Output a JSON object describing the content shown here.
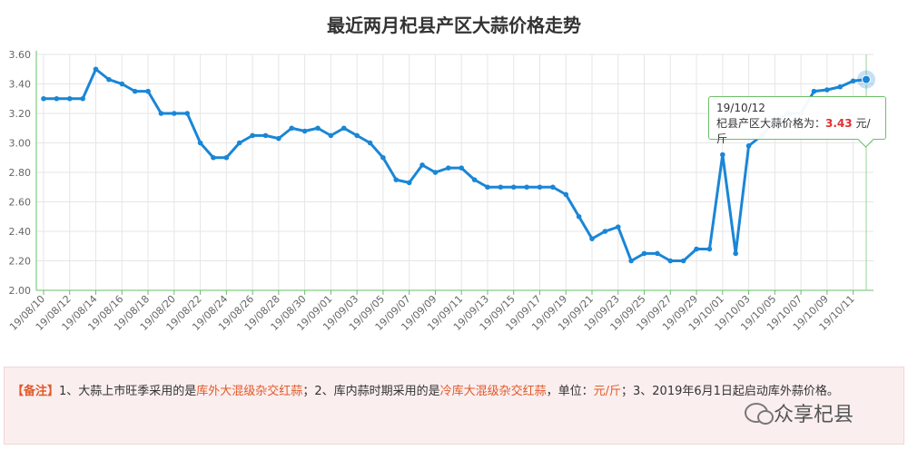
{
  "title": "最近两月杞县产区大蒜价格走势",
  "chart_data": {
    "type": "line",
    "x": [
      "19/08/10",
      "19/08/11",
      "19/08/12",
      "19/08/13",
      "19/08/14",
      "19/08/15",
      "19/08/16",
      "19/08/17",
      "19/08/18",
      "19/08/19",
      "19/08/20",
      "19/08/21",
      "19/08/22",
      "19/08/23",
      "19/08/24",
      "19/08/25",
      "19/08/26",
      "19/08/27",
      "19/08/28",
      "19/08/29",
      "19/08/30",
      "19/08/31",
      "19/09/01",
      "19/09/02",
      "19/09/03",
      "19/09/04",
      "19/09/05",
      "19/09/06",
      "19/09/07",
      "19/09/08",
      "19/09/09",
      "19/09/10",
      "19/09/11",
      "19/09/12",
      "19/09/13",
      "19/09/14",
      "19/09/15",
      "19/09/16",
      "19/09/17",
      "19/09/18",
      "19/09/19",
      "19/09/20",
      "19/09/21",
      "19/09/22",
      "19/09/23",
      "19/09/24",
      "19/09/25",
      "19/09/26",
      "19/09/27",
      "19/09/28",
      "19/09/29",
      "19/09/30",
      "19/10/01",
      "19/10/02",
      "19/10/03",
      "19/10/04",
      "19/10/05",
      "19/10/06",
      "19/10/07",
      "19/10/08",
      "19/10/09",
      "19/10/10",
      "19/10/11",
      "19/10/12"
    ],
    "xticks": [
      "19/08/10",
      "19/08/12",
      "19/08/14",
      "19/08/16",
      "19/08/18",
      "19/08/20",
      "19/08/22",
      "19/08/24",
      "19/08/26",
      "19/08/28",
      "19/08/30",
      "19/09/01",
      "19/09/03",
      "19/09/05",
      "19/09/07",
      "19/09/09",
      "19/09/11",
      "19/09/13",
      "19/09/15",
      "19/09/17",
      "19/09/19",
      "19/09/21",
      "19/09/23",
      "19/09/25",
      "19/09/27",
      "19/09/29",
      "19/10/01",
      "19/10/03",
      "19/10/05",
      "19/10/07",
      "19/10/09",
      "19/10/11"
    ],
    "values": [
      3.3,
      3.3,
      3.3,
      3.3,
      3.5,
      3.43,
      3.4,
      3.35,
      3.35,
      3.2,
      3.2,
      3.2,
      3.0,
      2.9,
      2.9,
      3.0,
      3.05,
      3.05,
      3.03,
      3.1,
      3.08,
      3.1,
      3.05,
      3.1,
      3.05,
      3.0,
      2.9,
      2.75,
      2.73,
      2.85,
      2.8,
      2.83,
      2.83,
      2.75,
      2.7,
      2.7,
      2.7,
      2.7,
      2.7,
      2.7,
      2.65,
      2.5,
      2.35,
      2.4,
      2.43,
      2.2,
      2.25,
      2.25,
      2.2,
      2.2,
      2.28,
      2.28,
      2.92,
      2.25,
      2.98,
      3.05,
      3.15,
      3.2,
      3.2,
      3.35,
      3.36,
      3.38,
      3.42,
      3.43
    ],
    "yticks": [
      "2.00",
      "2.20",
      "2.40",
      "2.60",
      "2.80",
      "3.00",
      "3.20",
      "3.40",
      "3.60"
    ],
    "ylim": [
      2.0,
      3.6
    ],
    "line_color": "#1a86d6",
    "grid": true
  },
  "tooltip": {
    "date": "19/10/12",
    "label": "杞县产区大蒜价格为：",
    "value": "3.43",
    "unit": " 元/斤"
  },
  "note": {
    "tag": "【备注】",
    "part1": "1、大蒜上市旺季采用的是",
    "red1": "库外大混级杂交红蒜",
    "part2": "；2、库内蒜时期采用的是",
    "red2": "冷库大混级杂交红蒜",
    "part3": "，单位：",
    "red3": "元/斤",
    "part4": "；3、2019年6月1日起启动库外蒜价格。"
  },
  "watermark": "众享杞县"
}
